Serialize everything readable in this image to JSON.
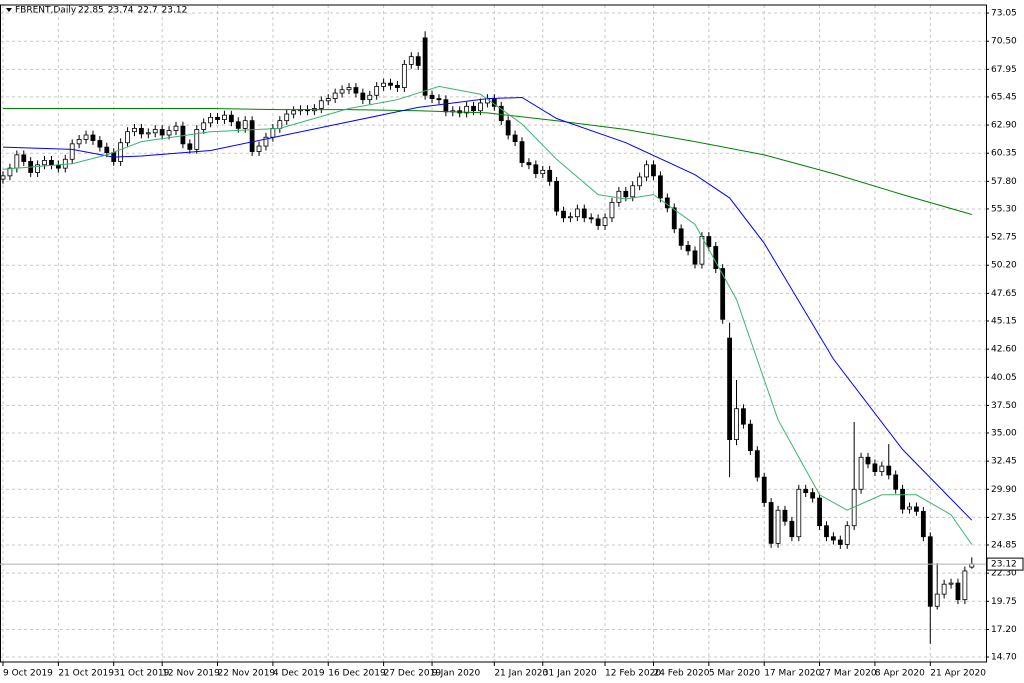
{
  "chart_data": {
    "type": "candlestick",
    "symbol": "FBRENT,Daily",
    "grid": true,
    "up_color": "#ffffff",
    "down_color": "#000000",
    "outline_color": "#000000",
    "ylim": [
      14.25,
      73.78
    ],
    "yticks": [
      73.05,
      {
        "value": 70.5,
        "label": "70.50"
      },
      67.95,
      65.45,
      {
        "value": 62.9,
        "label": "62.90"
      },
      60.35,
      {
        "value": 57.8,
        "label": "57.80"
      },
      {
        "value": 55.3,
        "label": "55.30"
      },
      52.75,
      {
        "value": 50.2,
        "label": "50.20"
      },
      47.65,
      45.15,
      {
        "value": 42.6,
        "label": "42.60"
      },
      40.05,
      {
        "value": 37.5,
        "label": "37.50"
      },
      {
        "value": 35,
        "label": "35.00"
      },
      32.45,
      {
        "value": 29.9,
        "label": "29.90"
      },
      27.35,
      24.85,
      {
        "value": 22.3,
        "label": "22.30"
      },
      19.75,
      {
        "value": 17.2,
        "label": "17.20"
      },
      {
        "value": 14.7,
        "label": "14.70"
      }
    ],
    "categories": [
      "9 Oct 2019",
      null,
      null,
      null,
      null,
      null,
      null,
      null,
      "21 Oct 2019",
      null,
      null,
      null,
      null,
      null,
      null,
      null,
      "31 Oct 2019",
      null,
      null,
      null,
      null,
      null,
      null,
      "12 Nov 2019",
      null,
      null,
      null,
      null,
      null,
      null,
      null,
      "22 Nov 2019",
      null,
      null,
      null,
      null,
      null,
      null,
      null,
      "4 Dec 2019",
      null,
      null,
      null,
      null,
      null,
      null,
      null,
      "16 Dec 2019",
      null,
      null,
      null,
      null,
      null,
      null,
      null,
      "27 Dec 2019",
      null,
      null,
      null,
      null,
      null,
      null,
      "9 Jan 2020",
      null,
      null,
      null,
      null,
      null,
      null,
      null,
      null,
      "21 Jan 2020",
      null,
      null,
      null,
      null,
      null,
      null,
      "31 Jan 2020",
      null,
      null,
      null,
      null,
      null,
      null,
      null,
      null,
      "12 Feb 2020",
      null,
      null,
      null,
      null,
      null,
      null,
      "24 Feb 2020",
      null,
      null,
      null,
      null,
      null,
      null,
      null,
      "5 Mar 2020",
      null,
      null,
      null,
      null,
      null,
      null,
      null,
      "17 Mar 2020",
      null,
      null,
      null,
      null,
      null,
      null,
      null,
      "27 Mar 2020",
      null,
      null,
      null,
      null,
      null,
      null,
      null,
      "8 Apr 2020",
      null,
      null,
      null,
      null,
      null,
      null,
      null,
      "21 Apr 2020",
      null,
      null,
      null,
      null,
      null,
      null
    ],
    "open": [
      58.0,
      58.3,
      59.0,
      60.2,
      59.6,
      58.6,
      59.3,
      59.7,
      59.3,
      59.0,
      59.8,
      61.2,
      61.6,
      62.0,
      61.5,
      60.9,
      60.4,
      59.6,
      61.3,
      62.3,
      62.6,
      62.1,
      62.2,
      62.5,
      62.0,
      62.4,
      62.8,
      61.2,
      60.7,
      62.5,
      63.1,
      63.6,
      63.4,
      63.8,
      63.2,
      62.6,
      63.3,
      60.5,
      61.0,
      61.8,
      62.6,
      63.3,
      63.9,
      64.2,
      64.3,
      64.2,
      64.4,
      65.1,
      65.3,
      65.8,
      66.1,
      66.3,
      65.8,
      65.2,
      65.6,
      66.4,
      66.7,
      66.5,
      66.3,
      68.4,
      69.1,
      70.8,
      65.6,
      65.3,
      65.2,
      64.1,
      64.2,
      64.0,
      64.6,
      64.2,
      64.9,
      65.3,
      64.6,
      63.3,
      62.0,
      61.4,
      59.5,
      59.3,
      58.5,
      58.8,
      57.8,
      55.1,
      54.5,
      54.6,
      55.3,
      54.5,
      54.4,
      53.8,
      54.5,
      55.9,
      56.9,
      56.4,
      57.4,
      58.2,
      59.3,
      58.3,
      56.3,
      55.4,
      53.5,
      52.0,
      51.5,
      50.3,
      52.8,
      51.9,
      49.9,
      43.6,
      34.4,
      37.2,
      35.8,
      33.4,
      31.0,
      28.7,
      25.0,
      28.0,
      27.0,
      25.6,
      29.9,
      29.6,
      29.1,
      26.6,
      25.6,
      25.3,
      24.9,
      26.6,
      29.9,
      32.8,
      32.2,
      31.5,
      32.0,
      31.2,
      29.9,
      28.1,
      28.3,
      27.9,
      25.6,
      19.3,
      20.4,
      21.3,
      21.4,
      19.9,
      22.85
    ],
    "high": [
      58.7,
      59.4,
      60.6,
      60.6,
      60.0,
      59.7,
      60.1,
      60.1,
      59.7,
      60.2,
      61.6,
      62.0,
      62.4,
      62.4,
      61.9,
      61.3,
      60.8,
      61.7,
      62.7,
      63.0,
      63.0,
      62.6,
      62.9,
      62.9,
      62.8,
      63.2,
      63.2,
      61.6,
      62.9,
      63.5,
      64.0,
      64.0,
      64.2,
      64.2,
      63.6,
      63.7,
      63.7,
      61.4,
      62.2,
      63.0,
      63.7,
      64.3,
      64.6,
      64.7,
      64.7,
      64.8,
      65.5,
      65.7,
      66.2,
      66.5,
      66.7,
      66.7,
      66.2,
      66.0,
      66.8,
      67.1,
      67.1,
      66.9,
      68.8,
      69.5,
      69.5,
      71.4,
      66.0,
      65.7,
      65.6,
      64.6,
      64.6,
      65.0,
      65.0,
      65.3,
      65.7,
      65.7,
      65.0,
      63.7,
      62.4,
      61.8,
      59.9,
      59.7,
      59.2,
      59.2,
      58.2,
      55.5,
      55.0,
      55.7,
      55.7,
      54.9,
      54.8,
      54.9,
      56.3,
      57.3,
      57.3,
      57.8,
      58.6,
      59.7,
      59.7,
      58.7,
      56.7,
      55.8,
      53.9,
      52.4,
      51.9,
      53.2,
      53.2,
      52.3,
      50.3,
      45.0,
      39.8,
      37.6,
      36.2,
      33.8,
      31.4,
      29.1,
      28.4,
      28.4,
      27.4,
      30.3,
      30.3,
      30.0,
      29.5,
      27.0,
      26.0,
      25.7,
      27.0,
      36.0,
      33.2,
      33.2,
      32.6,
      32.4,
      34.0,
      31.6,
      30.3,
      28.7,
      28.7,
      28.3,
      26.0,
      23.2,
      21.7,
      21.8,
      21.8,
      22.9,
      23.74
    ],
    "low": [
      57.6,
      57.9,
      58.6,
      59.2,
      58.2,
      58.2,
      58.9,
      58.9,
      58.6,
      58.6,
      59.4,
      60.8,
      61.2,
      61.1,
      60.5,
      60.0,
      59.2,
      59.2,
      60.9,
      61.9,
      61.7,
      61.7,
      61.8,
      61.6,
      61.6,
      62.0,
      60.8,
      60.3,
      60.3,
      62.1,
      62.7,
      63.0,
      63.0,
      62.8,
      62.2,
      62.2,
      60.1,
      60.1,
      60.6,
      61.4,
      62.2,
      62.9,
      63.5,
      63.8,
      63.8,
      63.8,
      64.0,
      64.7,
      64.9,
      65.4,
      65.7,
      65.4,
      64.8,
      64.8,
      65.2,
      66.0,
      66.1,
      65.9,
      65.9,
      68.0,
      67.9,
      65.2,
      64.9,
      64.8,
      63.7,
      63.7,
      63.6,
      63.6,
      63.8,
      63.8,
      64.5,
      64.2,
      62.9,
      61.6,
      61.0,
      59.1,
      58.9,
      58.1,
      58.1,
      57.4,
      54.7,
      54.1,
      54.1,
      54.2,
      54.1,
      54.0,
      53.4,
      53.4,
      54.1,
      55.5,
      56.0,
      56.0,
      57.0,
      57.8,
      57.9,
      55.9,
      55.0,
      53.1,
      51.6,
      51.1,
      49.9,
      49.9,
      51.5,
      49.5,
      44.9,
      31.0,
      33.9,
      35.4,
      33.0,
      30.6,
      28.3,
      24.6,
      24.6,
      26.6,
      25.2,
      25.2,
      29.2,
      28.7,
      26.2,
      25.2,
      24.9,
      24.5,
      24.5,
      26.2,
      29.5,
      31.8,
      31.1,
      31.1,
      30.8,
      29.5,
      27.7,
      27.7,
      27.5,
      25.2,
      15.9,
      19.0,
      20.0,
      20.9,
      19.5,
      19.5,
      22.7
    ],
    "close": [
      58.3,
      59.0,
      60.2,
      59.6,
      58.6,
      59.3,
      59.7,
      59.3,
      59.0,
      59.8,
      61.2,
      61.6,
      62.0,
      61.5,
      60.9,
      60.4,
      59.6,
      61.3,
      62.3,
      62.6,
      62.1,
      62.2,
      62.5,
      62.0,
      62.4,
      62.8,
      61.2,
      60.7,
      62.5,
      63.1,
      63.6,
      63.4,
      63.8,
      63.2,
      62.6,
      63.3,
      60.5,
      61.0,
      61.8,
      62.6,
      63.3,
      63.9,
      64.2,
      64.3,
      64.2,
      64.4,
      65.1,
      65.3,
      65.8,
      66.1,
      66.3,
      65.8,
      65.2,
      65.6,
      66.4,
      66.7,
      66.5,
      66.3,
      68.4,
      69.1,
      68.3,
      65.6,
      65.3,
      65.2,
      64.1,
      64.2,
      64.0,
      64.6,
      64.2,
      64.9,
      65.3,
      64.6,
      63.3,
      62.0,
      61.4,
      59.5,
      59.3,
      58.5,
      58.8,
      57.8,
      55.1,
      54.5,
      54.6,
      55.3,
      54.5,
      54.4,
      53.8,
      54.5,
      55.9,
      56.9,
      56.4,
      57.4,
      58.2,
      59.3,
      58.3,
      56.3,
      55.4,
      53.5,
      52.0,
      51.5,
      50.3,
      52.8,
      51.9,
      49.9,
      45.3,
      34.4,
      37.2,
      35.8,
      33.4,
      31.0,
      28.7,
      25.0,
      28.0,
      27.0,
      25.6,
      29.9,
      29.6,
      29.1,
      26.6,
      25.6,
      25.3,
      24.9,
      26.6,
      29.9,
      32.8,
      32.2,
      31.5,
      32.0,
      31.2,
      29.9,
      28.1,
      28.3,
      27.9,
      25.6,
      19.3,
      20.4,
      21.3,
      21.4,
      19.9,
      22.5,
      23.12
    ],
    "series": [
      {
        "color": "#008000",
        "x": [
          0,
          10,
          20,
          30,
          40,
          50,
          60,
          70,
          80,
          90,
          100,
          110,
          120,
          130,
          140
        ],
        "values": [
          64.4,
          64.4,
          64.4,
          64.4,
          64.3,
          64.3,
          64.2,
          64.0,
          63.3,
          62.5,
          61.4,
          60.2,
          58.5,
          56.6,
          54.8
        ]
      },
      {
        "color": "#0000ff",
        "x": [
          0,
          10,
          16,
          20,
          30,
          40,
          50,
          60,
          70,
          75,
          80,
          90,
          100,
          105,
          110,
          120,
          130,
          140
        ],
        "values": [
          60.9,
          60.7,
          60.0,
          60.1,
          60.6,
          61.9,
          63.2,
          64.5,
          65.3,
          65.4,
          63.5,
          61.3,
          58.4,
          56.3,
          52.2,
          41.7,
          33.5,
          27.1
        ]
      },
      {
        "color": "#3cb371",
        "x": [
          0,
          10,
          15,
          20,
          30,
          40,
          50,
          57,
          63,
          69,
          75,
          80,
          86,
          90,
          94,
          100,
          106,
          112,
          118,
          122,
          127,
          132,
          137,
          140
        ],
        "values": [
          58.9,
          59.4,
          60.2,
          61.4,
          62.3,
          62.6,
          64.4,
          65.2,
          66.4,
          65.7,
          63.0,
          59.8,
          56.6,
          56.2,
          56.6,
          53.9,
          47.1,
          36.2,
          29.4,
          28.0,
          29.4,
          29.4,
          27.6,
          24.9
        ]
      }
    ]
  }
}
